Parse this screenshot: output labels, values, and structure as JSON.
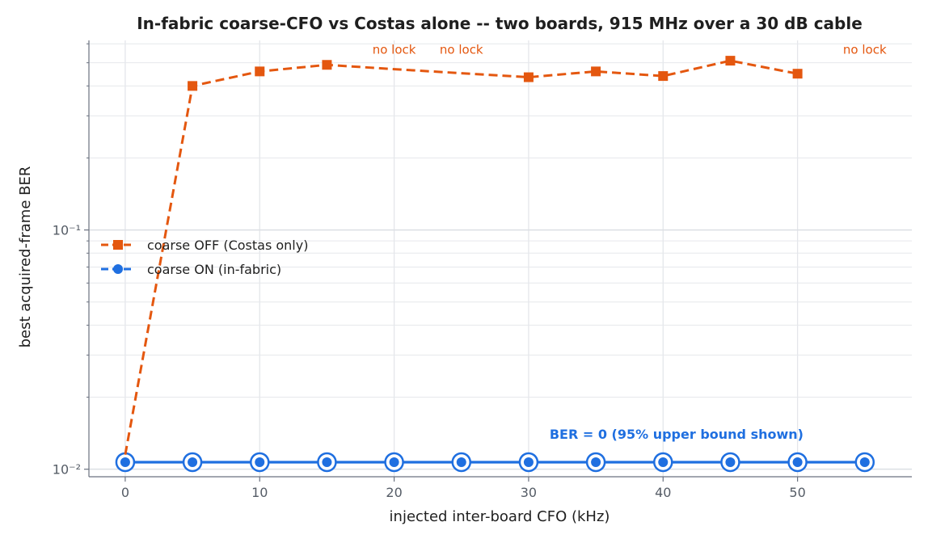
{
  "chart_data": {
    "type": "line",
    "title": "In-fabric coarse-CFO vs Costas alone -- two boards, 915 MHz over a 30 dB cable",
    "xlabel": "injected inter-board CFO (kHz)",
    "ylabel": "best acquired-frame BER",
    "x_scale": "linear",
    "y_scale": "log",
    "xlim": [
      -2.7,
      58.5
    ],
    "ylim": [
      0.0093,
      0.62
    ],
    "x_ticks": [
      0,
      10,
      20,
      30,
      40,
      50
    ],
    "x_tick_labels": [
      "0",
      "10",
      "20",
      "30",
      "40",
      "50"
    ],
    "y_ticks": [
      0.01,
      0.1
    ],
    "y_tick_labels": [
      "10⁻²",
      "10⁻¹"
    ],
    "y_minor_ticks": [
      0.02,
      0.03,
      0.04,
      0.05,
      0.06,
      0.07,
      0.08,
      0.09,
      0.2,
      0.3,
      0.4,
      0.5,
      0.6
    ],
    "grid": true,
    "legend_position": "center-left",
    "series": [
      {
        "name": "coarse OFF (Costas only)",
        "color": "#e4570f",
        "line_style": "dashed",
        "marker": "square",
        "x": [
          0,
          5,
          10,
          15,
          20,
          30,
          35,
          40,
          45,
          50
        ],
        "y": [
          0.0115,
          0.4,
          0.46,
          0.49,
          0.47,
          0.435,
          0.46,
          0.44,
          0.51,
          0.45
        ],
        "marker_x": [
          5,
          10,
          15,
          30,
          35,
          40,
          45,
          50
        ]
      },
      {
        "name": "coarse ON (in-fabric)",
        "color": "#1f6fe0",
        "line_style": "solid",
        "marker": "circle",
        "x": [
          0,
          5,
          10,
          15,
          20,
          25,
          30,
          35,
          40,
          45,
          50,
          55
        ],
        "y": [
          0.0107,
          0.0107,
          0.0107,
          0.0107,
          0.0107,
          0.0107,
          0.0107,
          0.0107,
          0.0107,
          0.0107,
          0.0107,
          0.0107
        ]
      }
    ],
    "annotations": [
      {
        "text": "no lock",
        "x": 20,
        "y": 0.545,
        "color": "#e4570f"
      },
      {
        "text": "no lock",
        "x": 25,
        "y": 0.545,
        "color": "#e4570f"
      },
      {
        "text": "no lock",
        "x": 55,
        "y": 0.545,
        "color": "#e4570f"
      },
      {
        "text": "BER = 0  (95% upper bound shown)",
        "x": 41,
        "y": 0.0134,
        "color": "#1f6fe0"
      }
    ]
  }
}
